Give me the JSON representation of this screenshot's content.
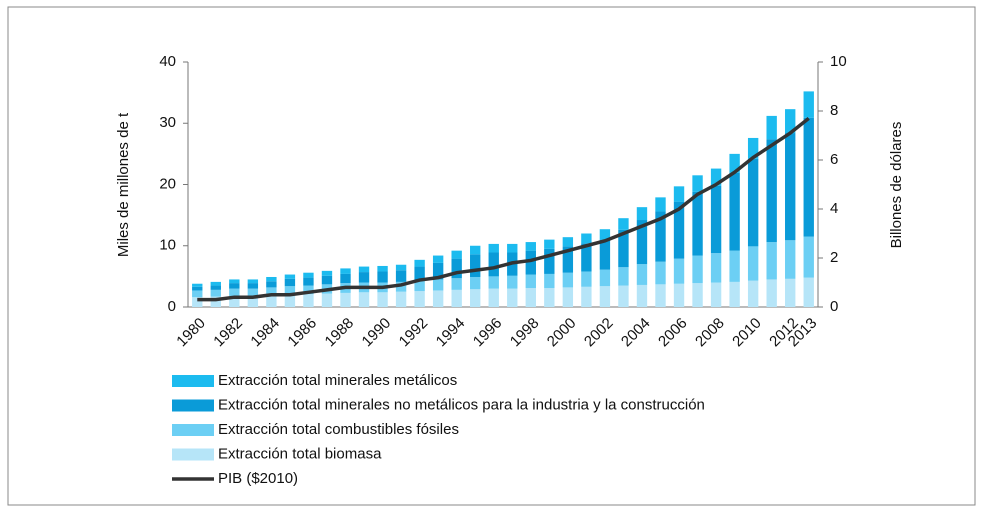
{
  "chart_data": {
    "type": "bar",
    "y_label": "Miles de millones de t",
    "y2_label": "Billones de dólares",
    "categories": [
      "1980",
      null,
      "1982",
      null,
      "1984",
      null,
      "1986",
      null,
      "1988",
      null,
      "1990",
      null,
      "1992",
      null,
      "1994",
      null,
      "1996",
      null,
      "1998",
      null,
      "2000",
      null,
      "2002",
      null,
      "2004",
      null,
      "2006",
      null,
      "2008",
      null,
      "2010",
      null,
      "2012",
      "2013"
    ],
    "series": [
      {
        "name": "Extracción total minerales metálicos",
        "type": "bar",
        "color": "#1cbbef",
        "values": [
          0.5,
          0.6,
          0.6,
          0.6,
          0.7,
          0.7,
          0.8,
          0.8,
          0.9,
          0.9,
          0.9,
          0.9,
          1.1,
          1.2,
          1.3,
          1.4,
          1.4,
          1.4,
          1.4,
          1.5,
          1.5,
          1.6,
          1.7,
          1.9,
          2.1,
          2.3,
          2.5,
          2.7,
          2.8,
          3.1,
          3.4,
          3.8,
          3.9,
          4.3
        ]
      },
      {
        "name": "Extracción total minerales no metálicos para la industria y la construcción",
        "type": "bar",
        "color": "#0a9bd8",
        "values": [
          0.6,
          0.7,
          0.9,
          0.9,
          1.0,
          1.2,
          1.3,
          1.4,
          1.5,
          1.7,
          1.8,
          1.9,
          2.3,
          2.7,
          3.2,
          3.7,
          3.9,
          3.8,
          3.9,
          4.1,
          4.3,
          4.6,
          4.9,
          6.1,
          7.2,
          8.2,
          9.3,
          10.4,
          11.0,
          12.7,
          14.3,
          16.8,
          17.5,
          19.4
        ]
      },
      {
        "name": "Extracción total combustibles fósiles",
        "type": "bar",
        "color": "#6ccff4",
        "values": [
          1.1,
          1.1,
          1.2,
          1.2,
          1.3,
          1.4,
          1.4,
          1.5,
          1.6,
          1.6,
          1.6,
          1.6,
          1.7,
          1.8,
          1.9,
          2.0,
          2.0,
          2.1,
          2.2,
          2.3,
          2.4,
          2.5,
          2.7,
          3.0,
          3.4,
          3.7,
          4.1,
          4.5,
          4.8,
          5.1,
          5.6,
          6.1,
          6.3,
          6.7
        ]
      },
      {
        "name": "Extracción total biomasa",
        "type": "bar",
        "color": "#b6e5f8",
        "values": [
          1.6,
          1.7,
          1.8,
          1.8,
          1.9,
          2.0,
          2.1,
          2.2,
          2.3,
          2.4,
          2.4,
          2.5,
          2.6,
          2.7,
          2.8,
          2.9,
          3.0,
          3.0,
          3.1,
          3.1,
          3.2,
          3.3,
          3.4,
          3.5,
          3.6,
          3.7,
          3.8,
          3.9,
          4.0,
          4.1,
          4.3,
          4.5,
          4.6,
          4.8
        ]
      },
      {
        "name": "PIB ($2010)",
        "type": "line",
        "axis": "y2",
        "color": "#333333",
        "values": [
          0.3,
          0.3,
          0.4,
          0.4,
          0.5,
          0.5,
          0.6,
          0.7,
          0.8,
          0.8,
          0.8,
          0.9,
          1.1,
          1.2,
          1.4,
          1.5,
          1.6,
          1.8,
          1.9,
          2.1,
          2.3,
          2.5,
          2.7,
          3.0,
          3.3,
          3.6,
          4.0,
          4.6,
          5.0,
          5.5,
          6.1,
          6.6,
          7.1,
          7.7
        ]
      }
    ],
    "ylim": [
      0,
      40
    ],
    "yticks": [
      0,
      10,
      20,
      30,
      40
    ],
    "y2lim": [
      0,
      10
    ],
    "y2ticks": [
      0,
      2,
      4,
      6,
      8,
      10
    ]
  }
}
